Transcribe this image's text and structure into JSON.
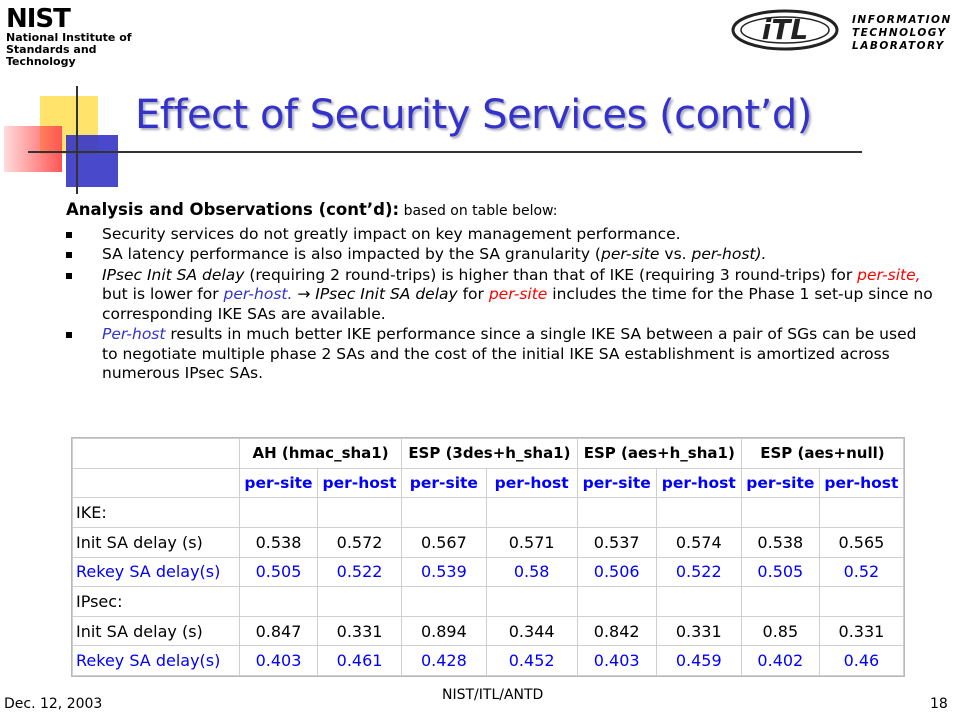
{
  "logos": {
    "nist_wordmark": "NIST",
    "nist_line1": "National Institute of",
    "nist_line2": "Standards and Technology",
    "itl_mark": "iTL",
    "itl_line1": "INFORMATION",
    "itl_line2": "TECHNOLOGY",
    "itl_line3": "LABORATORY"
  },
  "slide": {
    "title": "Effect of Security Services (cont’d)",
    "heading": "Analysis and Observations (cont’d):",
    "heading_note": " based on table below:",
    "bullet1": "Security services do not greatly impact on key management performance.",
    "bullet2_a": "SA latency performance is also impacted by the SA granularity (",
    "bullet2_b": "per-site",
    "bullet2_c": " vs. ",
    "bullet2_d": "per-host).",
    "bullet3_a": "IPsec Init SA delay",
    "bullet3_b": " (requiring 2 round-trips) is higher than that of IKE (requiring 3 round-trips) for ",
    "bullet3_c": "per-site,",
    "bullet3_d": " but is lower for ",
    "bullet3_e": "per-host.",
    "bullet3_arrow": " → ",
    "bullet3_f": "IPsec Init SA delay",
    "bullet3_g": " for ",
    "bullet3_h": "per-site",
    "bullet3_i": " includes the time for the Phase 1 set-up since no corresponding IKE SAs are available.",
    "bullet4_a": "Per-host",
    "bullet4_b": " results in much better IKE performance since a single IKE SA between a pair of SGs can be used to negotiate multiple phase 2 SAs and the cost of the initial IKE SA establishment is amortized across numerous IPsec SAs."
  },
  "table": {
    "groups": [
      "AH (hmac_sha1)",
      "ESP (3des+h_sha1)",
      "ESP (aes+h_sha1)",
      "ESP (aes+null)"
    ],
    "subheaders": [
      "per-site",
      "per-host",
      "per-site",
      "per-host",
      "per-site",
      "per-host",
      "per-site",
      "per-host"
    ],
    "section_ike": "IKE:",
    "section_ipsec": "IPsec:",
    "rows": [
      {
        "label": "Init SA delay (s)",
        "values": [
          "0.538",
          "0.572",
          "0.567",
          "0.571",
          "0.537",
          "0.574",
          "0.538",
          "0.565"
        ]
      },
      {
        "label": "Rekey SA delay(s)",
        "values": [
          "0.505",
          "0.522",
          "0.539",
          "0.58",
          "0.506",
          "0.522",
          "0.505",
          "0.52"
        ]
      },
      {
        "label": "Init SA delay (s)",
        "values": [
          "0.847",
          "0.331",
          "0.894",
          "0.344",
          "0.842",
          "0.331",
          "0.85",
          "0.331"
        ]
      },
      {
        "label": "Rekey SA delay(s)",
        "values": [
          "0.403",
          "0.461",
          "0.428",
          "0.452",
          "0.403",
          "0.459",
          "0.402",
          "0.46"
        ]
      }
    ]
  },
  "footer": {
    "date": "Dec. 12, 2003",
    "center": "NIST/ITL/ANTD",
    "page": "18"
  },
  "colors": {
    "title": "#3333cc",
    "emphasis_red": "#ff0000",
    "emphasis_blue": "#3333cc",
    "table_blue": "#0000ff"
  }
}
